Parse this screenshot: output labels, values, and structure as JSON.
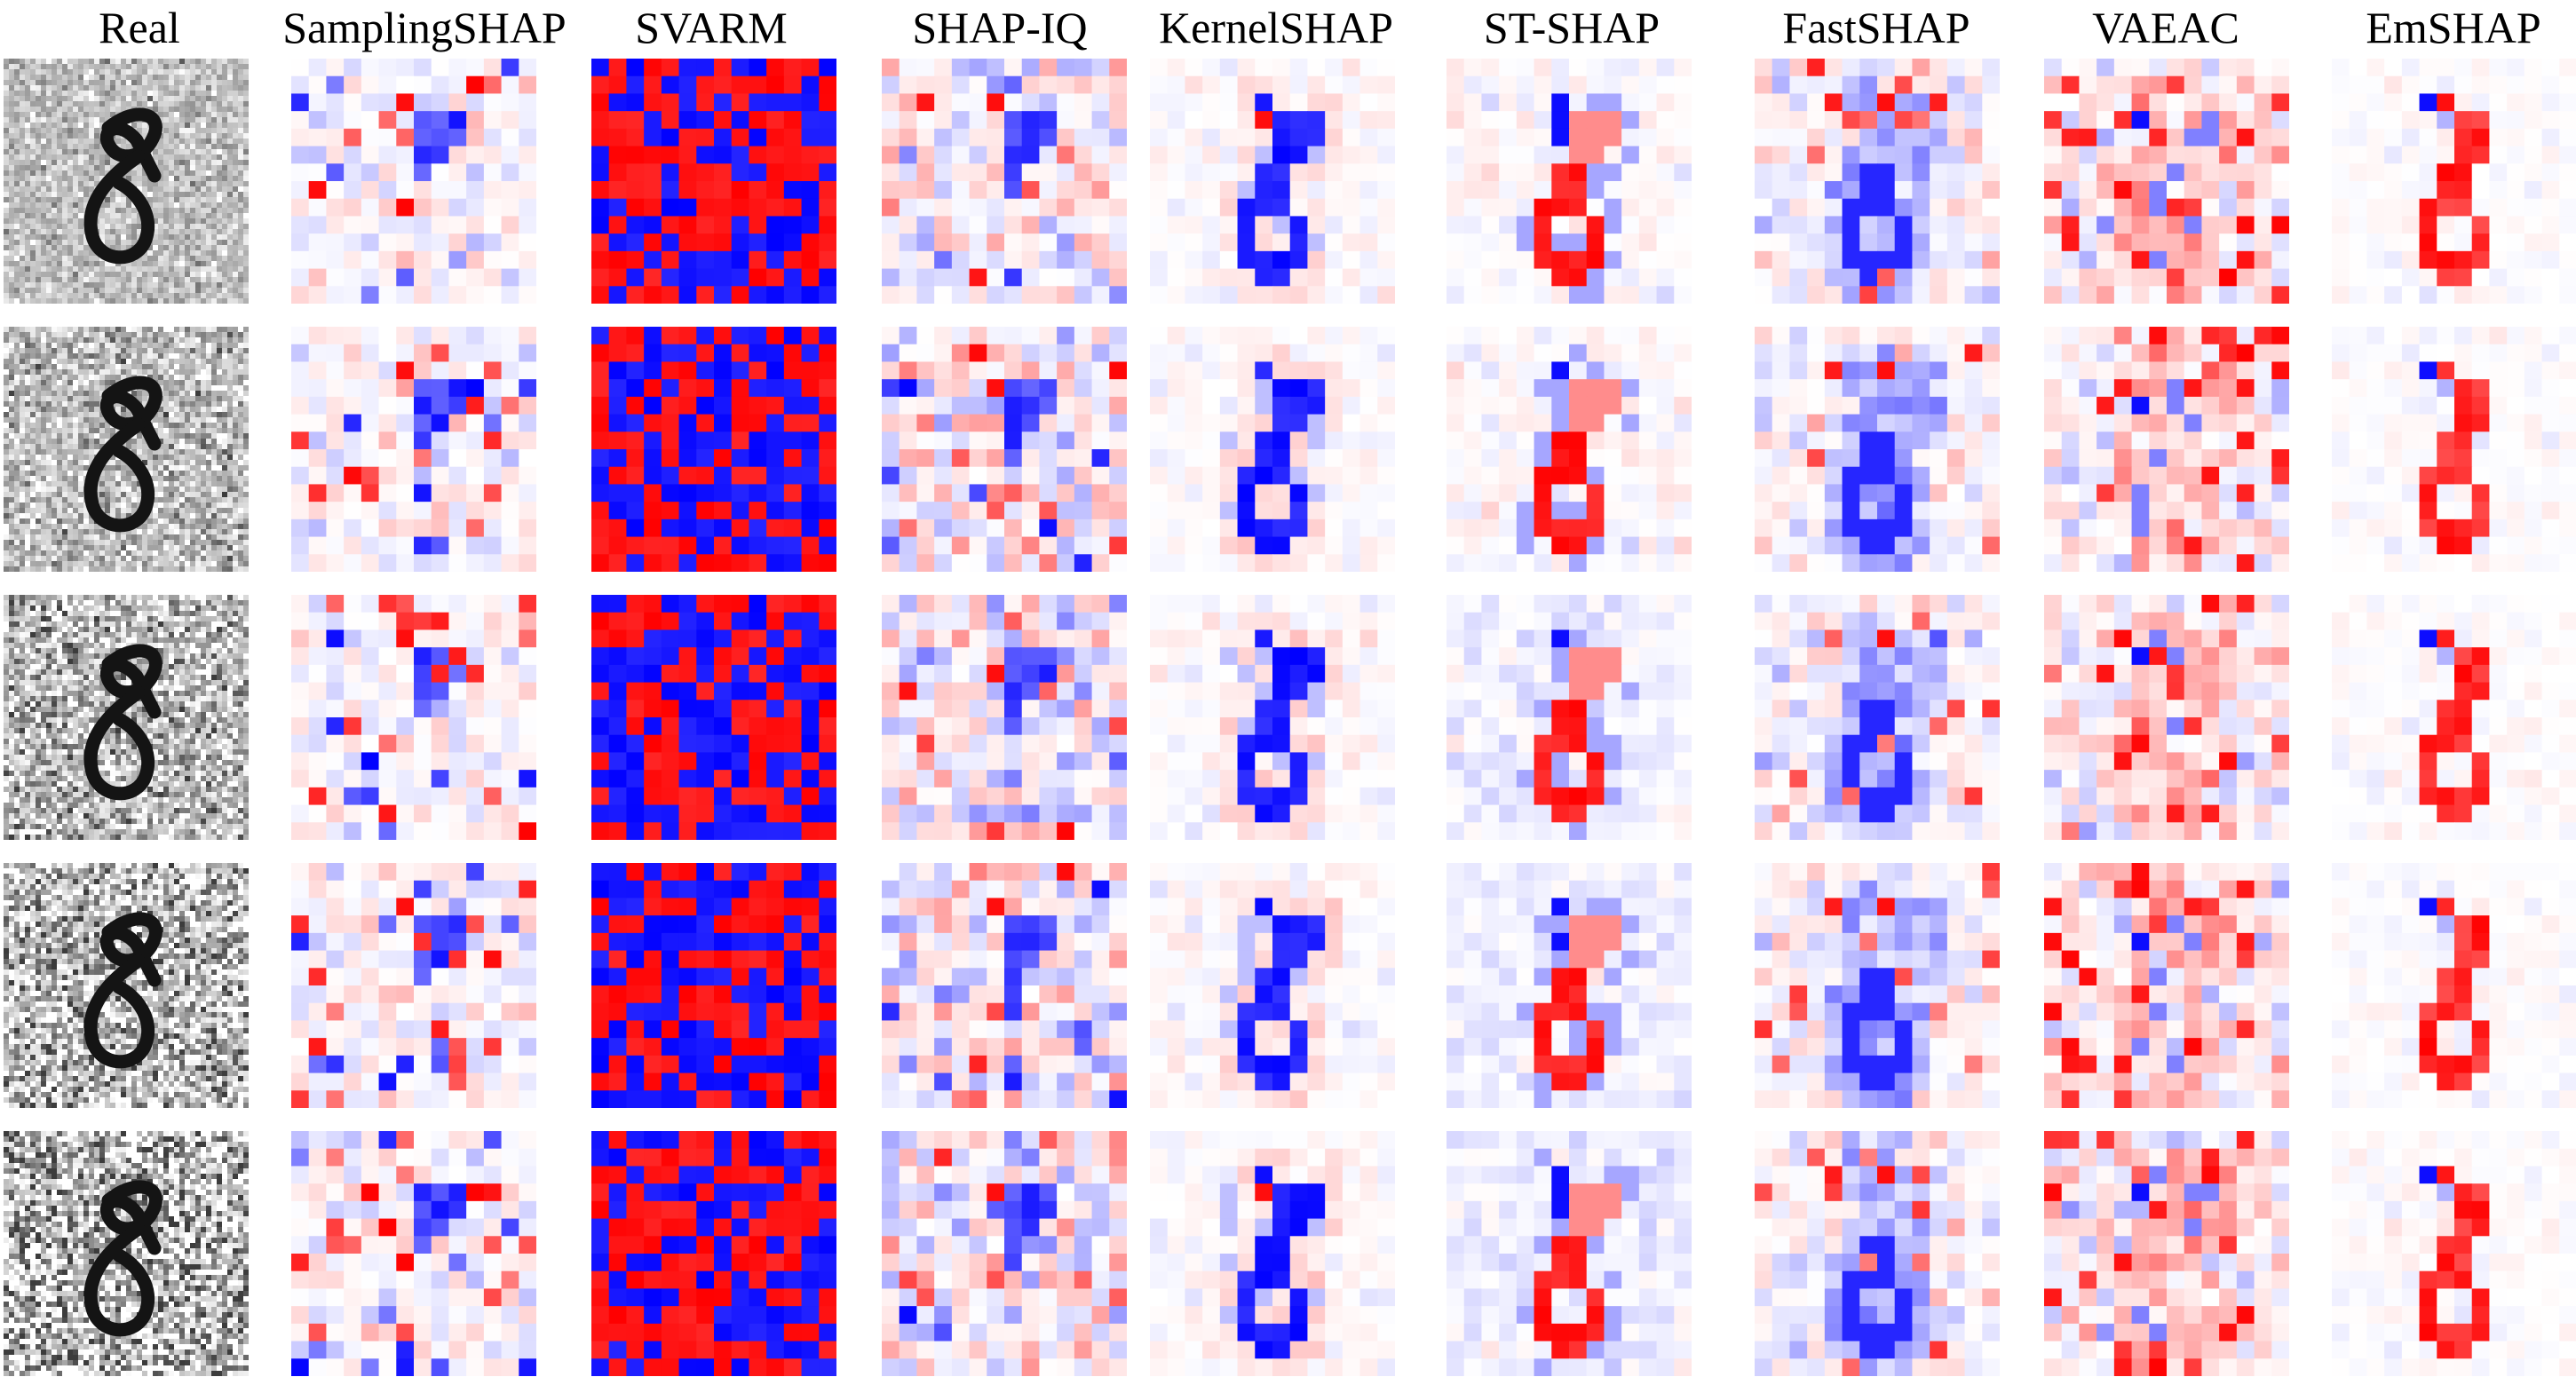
{
  "figure": {
    "columns": [
      {
        "key": "real",
        "label": "Real"
      },
      {
        "key": "samplingshap",
        "label": "SamplingSHAP"
      },
      {
        "key": "svarm",
        "label": "SVARM"
      },
      {
        "key": "shap_iq",
        "label": "SHAP-IQ"
      },
      {
        "key": "kernelshap",
        "label": "KernelSHAP"
      },
      {
        "key": "st_shap",
        "label": "ST-SHAP"
      },
      {
        "key": "fastshap",
        "label": "FastSHAP"
      },
      {
        "key": "vaeac",
        "label": "VAEAC"
      },
      {
        "key": "emshap",
        "label": "EmSHAP"
      }
    ],
    "row_count": 5,
    "grid_cells": 14,
    "colors": {
      "positive": "#ff0000",
      "negative": "#0000ff",
      "neutral": "#ffffff",
      "digit_ink": "#141414",
      "digit_background": "#bdbdbd"
    }
  }
}
